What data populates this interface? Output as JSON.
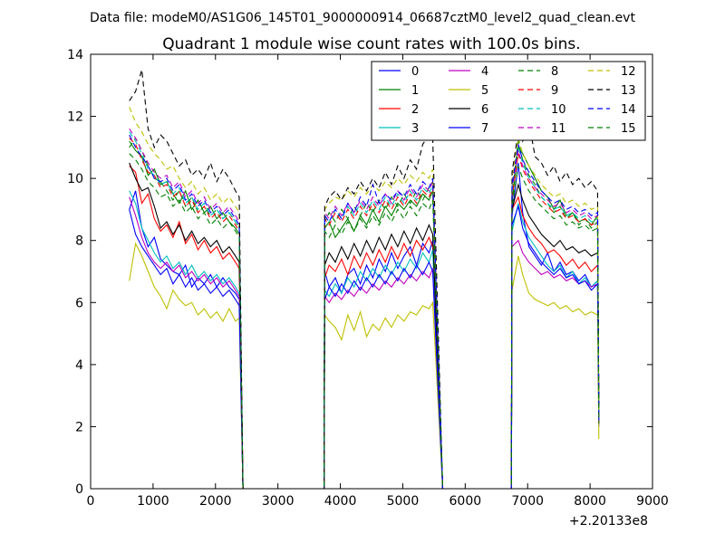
{
  "suptitle": "Data file: modeM0/AS1G06_145T01_9000000914_06687cztM0_level2_quad_clean.evt",
  "chart_data": {
    "type": "line",
    "title": "Quadrant 1 module wise count rates with 100.0s bins.",
    "xlabel": "",
    "ylabel": "",
    "x_offset_label": "+2.20133e8",
    "xlim": [
      0,
      9000
    ],
    "ylim": [
      0,
      14
    ],
    "x_ticks": [
      0,
      1000,
      2000,
      3000,
      4000,
      5000,
      6000,
      7000,
      8000,
      9000
    ],
    "y_ticks": [
      0,
      2,
      4,
      6,
      8,
      10,
      12,
      14
    ],
    "grid": false,
    "legend_position": "top-right",
    "legend_columns": 4,
    "segments": [
      [
        620,
        720,
        820,
        920,
        1020,
        1120,
        1220,
        1320,
        1420,
        1520,
        1620,
        1720,
        1820,
        1920,
        2020,
        2120,
        2220,
        2320,
        2380
      ],
      [
        3750,
        3820,
        3920,
        4020,
        4120,
        4220,
        4320,
        4420,
        4520,
        4620,
        4720,
        4820,
        4920,
        5020,
        5120,
        5220,
        5320,
        5420,
        5480
      ],
      [
        6750,
        6850,
        6920,
        7020,
        7120,
        7220,
        7320,
        7420,
        7520,
        7620,
        7720,
        7820,
        7920,
        8020,
        8120
      ]
    ],
    "gaps": [
      [
        2440,
        2540,
        2640,
        2740,
        2840,
        2940,
        3040,
        3140,
        3240,
        3340,
        3440,
        3540,
        3640,
        3740
      ],
      [
        5640,
        5740,
        5840,
        5940,
        6040,
        6140,
        6240,
        6340,
        6440,
        6540,
        6640,
        6740
      ]
    ],
    "series": [
      {
        "name": "0",
        "color": "#0000ff",
        "dash": "solid",
        "values": [
          [
            9.0,
            9.6,
            8.4,
            7.8,
            8.1,
            7.4,
            7.2,
            7.0,
            6.9,
            7.2,
            6.5,
            6.8,
            6.6,
            6.9,
            6.5,
            6.8,
            6.5,
            6.3,
            6.1
          ],
          [
            7.0,
            6.5,
            6.8,
            6.3,
            6.9,
            7.1,
            6.6,
            7.2,
            6.8,
            7.4,
            7.0,
            7.6,
            7.1,
            7.5,
            7.8,
            7.2,
            7.9,
            7.6,
            8.0
          ],
          [
            8.8,
            10.5,
            8.9,
            7.8,
            7.5,
            7.2,
            7.6,
            7.0,
            7.3,
            6.9,
            7.0,
            6.7,
            6.9,
            6.5,
            6.7
          ]
        ]
      },
      {
        "name": "1",
        "color": "#008000",
        "dash": "solid",
        "values": [
          [
            11.2,
            10.9,
            10.7,
            10.1,
            10.3,
            9.8,
            9.9,
            9.5,
            9.2,
            9.6,
            9.0,
            9.3,
            8.9,
            9.1,
            8.7,
            8.9,
            8.6,
            8.4,
            8.2
          ],
          [
            8.4,
            8.6,
            8.1,
            8.4,
            8.7,
            8.3,
            8.8,
            8.5,
            9.0,
            8.6,
            9.1,
            8.8,
            9.2,
            9.0,
            9.3,
            9.1,
            9.5,
            9.3,
            9.6
          ],
          [
            9.2,
            11.0,
            10.8,
            10.4,
            10.0,
            9.6,
            9.4,
            9.0,
            9.3,
            8.8,
            8.9,
            8.6,
            8.7,
            8.5,
            8.8
          ]
        ]
      },
      {
        "name": "2",
        "color": "#ff0000",
        "dash": "solid",
        "values": [
          [
            10.4,
            10.2,
            9.2,
            9.5,
            8.7,
            8.3,
            8.5,
            8.1,
            8.6,
            7.9,
            8.2,
            7.7,
            8.0,
            7.6,
            7.8,
            7.4,
            7.6,
            7.3,
            7.1
          ],
          [
            6.8,
            7.2,
            7.0,
            7.4,
            6.9,
            7.5,
            7.1,
            7.6,
            7.2,
            7.7,
            7.3,
            7.8,
            7.4,
            7.9,
            7.5,
            8.0,
            7.7,
            8.1,
            7.8
          ],
          [
            9.0,
            9.4,
            8.8,
            8.4,
            8.1,
            7.9,
            7.6,
            7.7,
            7.5,
            7.2,
            7.4,
            7.1,
            7.3,
            7.0,
            7.2
          ]
        ]
      },
      {
        "name": "3",
        "color": "#00bfbf",
        "dash": "solid",
        "values": [
          [
            9.6,
            9.2,
            8.4,
            8.0,
            7.6,
            7.3,
            7.5,
            7.1,
            7.3,
            6.9,
            7.2,
            6.8,
            7.0,
            6.7,
            6.9,
            6.6,
            6.8,
            6.5,
            6.3
          ],
          [
            6.4,
            6.2,
            6.6,
            6.3,
            6.8,
            6.5,
            7.0,
            6.7,
            7.1,
            6.8,
            7.2,
            6.9,
            7.3,
            7.0,
            7.4,
            7.1,
            7.6,
            7.3,
            7.7
          ],
          [
            8.3,
            9.2,
            8.6,
            8.1,
            7.8,
            7.5,
            7.2,
            7.0,
            7.2,
            6.8,
            7.0,
            6.6,
            6.8,
            6.5,
            6.7
          ]
        ]
      },
      {
        "name": "4",
        "color": "#bf00bf",
        "dash": "solid",
        "values": [
          [
            9.4,
            8.8,
            8.1,
            7.6,
            7.3,
            7.1,
            7.3,
            7.0,
            7.2,
            6.8,
            7.0,
            6.7,
            6.9,
            6.6,
            6.8,
            6.5,
            6.7,
            6.4,
            6.2
          ],
          [
            6.2,
            6.0,
            6.3,
            6.1,
            6.4,
            6.2,
            6.5,
            6.3,
            6.6,
            6.4,
            6.7,
            6.5,
            6.8,
            6.6,
            6.9,
            6.7,
            7.0,
            6.8,
            7.1
          ],
          [
            7.8,
            8.0,
            7.6,
            7.3,
            7.1,
            6.9,
            7.0,
            6.8,
            6.9,
            6.7,
            6.8,
            6.6,
            6.7,
            6.5,
            6.6
          ]
        ]
      },
      {
        "name": "5",
        "color": "#bfbf00",
        "dash": "solid",
        "values": [
          [
            6.7,
            7.9,
            7.5,
            7.0,
            6.5,
            6.2,
            5.8,
            6.4,
            6.1,
            5.9,
            6.0,
            5.6,
            5.8,
            5.5,
            5.7,
            5.4,
            5.8,
            5.4,
            5.5
          ],
          [
            5.6,
            5.4,
            5.2,
            4.8,
            5.6,
            5.1,
            5.7,
            4.9,
            5.3,
            5.1,
            5.5,
            5.2,
            5.6,
            5.4,
            5.7,
            5.6,
            5.9,
            5.8,
            6.0
          ],
          [
            6.4,
            7.5,
            6.9,
            6.3,
            6.1,
            6.0,
            5.9,
            6.0,
            5.8,
            5.9,
            5.7,
            5.8,
            5.6,
            5.7,
            5.6
          ]
        ]
      },
      {
        "name": "6",
        "color": "#000000",
        "dash": "solid",
        "values": [
          [
            10.5,
            10.0,
            9.6,
            9.7,
            9.1,
            8.4,
            8.6,
            8.2,
            8.5,
            8.0,
            8.3,
            7.9,
            8.1,
            7.8,
            8.0,
            7.6,
            7.8,
            7.5,
            7.3
          ],
          [
            7.2,
            7.6,
            7.3,
            7.8,
            7.4,
            7.9,
            7.5,
            8.0,
            7.6,
            8.1,
            7.7,
            8.2,
            7.8,
            8.3,
            7.9,
            8.4,
            8.0,
            8.5,
            8.2
          ],
          [
            9.0,
            9.8,
            9.3,
            8.8,
            8.5,
            8.2,
            8.0,
            7.8,
            8.0,
            7.7,
            7.8,
            7.6,
            7.7,
            7.5,
            7.6
          ]
        ]
      },
      {
        "name": "7",
        "color": "#0000ff",
        "dash": "solid",
        "values": [
          [
            9.0,
            8.2,
            7.8,
            7.5,
            7.2,
            6.9,
            7.1,
            6.6,
            6.9,
            6.5,
            6.8,
            6.4,
            6.6,
            6.3,
            6.5,
            6.2,
            6.4,
            6.1,
            5.9
          ],
          [
            6.1,
            6.5,
            6.2,
            6.6,
            6.3,
            6.7,
            6.4,
            6.8,
            6.5,
            6.9,
            6.6,
            7.0,
            6.7,
            7.1,
            6.8,
            7.2,
            6.9,
            7.3,
            7.0
          ],
          [
            8.5,
            9.1,
            8.4,
            7.9,
            7.6,
            7.3,
            7.1,
            6.9,
            7.1,
            6.8,
            6.9,
            6.6,
            6.7,
            6.4,
            6.6
          ]
        ]
      },
      {
        "name": "8",
        "color": "#008000",
        "dash": "dashed",
        "values": [
          [
            11.0,
            11.3,
            10.9,
            10.4,
            10.0,
            9.9,
            9.6,
            9.3,
            9.6,
            9.1,
            9.4,
            8.9,
            9.1,
            8.8,
            9.0,
            8.7,
            8.9,
            8.6,
            8.4
          ],
          [
            8.6,
            8.9,
            8.6,
            9.0,
            8.7,
            9.1,
            8.8,
            9.2,
            8.9,
            9.3,
            9.0,
            9.4,
            9.1,
            9.5,
            9.2,
            9.6,
            9.3,
            9.7,
            9.9
          ],
          [
            9.5,
            11.2,
            10.6,
            10.1,
            9.8,
            9.4,
            9.2,
            8.9,
            9.1,
            8.7,
            8.9,
            8.5,
            8.7,
            8.4,
            8.6
          ]
        ]
      },
      {
        "name": "9",
        "color": "#ff0000",
        "dash": "dashed",
        "values": [
          [
            11.3,
            11.1,
            10.6,
            10.2,
            10.1,
            9.7,
            9.8,
            9.4,
            9.6,
            9.1,
            9.3,
            8.9,
            9.1,
            8.7,
            8.9,
            8.6,
            8.8,
            8.5,
            8.3
          ],
          [
            8.7,
            8.5,
            8.9,
            8.6,
            9.0,
            8.7,
            9.1,
            8.8,
            9.2,
            8.9,
            9.3,
            9.0,
            9.4,
            9.1,
            9.5,
            9.2,
            9.6,
            9.4,
            9.7
          ],
          [
            9.4,
            10.8,
            10.3,
            9.9,
            9.6,
            9.3,
            9.1,
            8.9,
            9.0,
            8.7,
            8.8,
            8.6,
            8.7,
            8.5,
            8.6
          ]
        ]
      },
      {
        "name": "10",
        "color": "#00bfbf",
        "dash": "dashed",
        "values": [
          [
            11.5,
            11.2,
            10.8,
            10.3,
            10.1,
            9.8,
            9.9,
            9.5,
            9.7,
            9.2,
            9.4,
            9.0,
            9.2,
            8.8,
            9.0,
            8.7,
            8.9,
            8.6,
            8.4
          ],
          [
            8.8,
            8.6,
            9.0,
            8.7,
            9.1,
            8.8,
            9.2,
            8.9,
            9.3,
            9.0,
            9.4,
            9.1,
            9.5,
            9.2,
            9.6,
            9.3,
            9.7,
            9.5,
            9.8
          ],
          [
            9.6,
            11.0,
            10.5,
            10.0,
            9.7,
            9.4,
            9.2,
            9.0,
            9.1,
            8.8,
            8.9,
            8.7,
            8.8,
            8.6,
            8.7
          ]
        ]
      },
      {
        "name": "11",
        "color": "#bf00bf",
        "dash": "dashed",
        "values": [
          [
            11.6,
            11.3,
            10.9,
            10.5,
            10.2,
            10.0,
            10.1,
            9.7,
            9.9,
            9.4,
            9.6,
            9.2,
            9.4,
            9.0,
            9.2,
            8.9,
            9.1,
            8.8,
            8.6
          ],
          [
            8.9,
            8.7,
            9.1,
            8.8,
            9.2,
            8.9,
            9.3,
            9.0,
            9.4,
            9.1,
            9.5,
            9.2,
            9.6,
            9.3,
            9.7,
            9.4,
            9.8,
            9.6,
            9.9
          ],
          [
            9.7,
            10.9,
            10.4,
            10.0,
            9.7,
            9.5,
            9.3,
            9.1,
            9.2,
            8.9,
            9.0,
            8.8,
            8.9,
            8.7,
            8.8
          ]
        ]
      },
      {
        "name": "12",
        "color": "#bfbf00",
        "dash": "dashed",
        "values": [
          [
            12.3,
            11.8,
            11.5,
            11.1,
            10.8,
            10.6,
            10.3,
            10.4,
            10.0,
            9.7,
            9.9,
            9.5,
            9.7,
            9.3,
            9.5,
            9.2,
            9.4,
            9.1,
            8.9
          ],
          [
            9.0,
            9.2,
            9.4,
            9.3,
            9.6,
            9.4,
            9.7,
            9.5,
            9.8,
            9.6,
            9.9,
            9.7,
            10.0,
            9.8,
            10.1,
            9.9,
            10.2,
            10.0,
            10.3
          ],
          [
            10.0,
            11.3,
            10.8,
            10.4,
            10.1,
            9.8,
            9.6,
            9.4,
            9.5,
            9.2,
            9.3,
            9.1,
            9.2,
            9.0,
            9.1
          ]
        ]
      },
      {
        "name": "13",
        "color": "#000000",
        "dash": "dashed",
        "values": [
          [
            12.5,
            12.8,
            13.5,
            11.6,
            11.0,
            11.4,
            11.2,
            10.8,
            10.4,
            10.6,
            10.1,
            10.3,
            10.0,
            10.5,
            9.9,
            10.3,
            10.0,
            9.6,
            9.4
          ],
          [
            9.1,
            9.4,
            9.6,
            9.3,
            9.7,
            9.5,
            9.9,
            9.6,
            10.0,
            9.7,
            10.2,
            9.8,
            10.4,
            10.0,
            10.6,
            10.3,
            11.1,
            11.4,
            11.3
          ],
          [
            10.2,
            11.5,
            11.2,
            11.8,
            10.7,
            10.5,
            10.1,
            10.4,
            9.9,
            10.2,
            9.8,
            10.0,
            9.7,
            9.9,
            9.6
          ]
        ]
      },
      {
        "name": "14",
        "color": "#0000ff",
        "dash": "dashed",
        "values": [
          [
            11.4,
            11.0,
            10.7,
            10.4,
            10.0,
            9.9,
            10.0,
            9.6,
            9.8,
            9.3,
            9.5,
            9.1,
            9.3,
            8.9,
            9.1,
            8.8,
            9.0,
            8.7,
            8.5
          ],
          [
            8.8,
            8.6,
            9.0,
            8.7,
            9.2,
            8.9,
            9.4,
            9.1,
            9.8,
            9.2,
            9.5,
            9.3,
            9.6,
            9.4,
            9.8,
            9.5,
            9.9,
            9.7,
            10.0
          ],
          [
            9.8,
            11.1,
            10.6,
            10.2,
            9.9,
            9.6,
            9.4,
            9.2,
            9.3,
            9.0,
            9.1,
            8.9,
            9.0,
            8.8,
            8.9
          ]
        ]
      },
      {
        "name": "15",
        "color": "#008000",
        "dash": "dashed",
        "values": [
          [
            10.8,
            10.6,
            10.3,
            9.9,
            9.7,
            9.4,
            9.5,
            9.1,
            9.3,
            8.9,
            9.1,
            8.7,
            8.9,
            8.5,
            8.7,
            8.4,
            8.6,
            8.3,
            8.1
          ],
          [
            8.3,
            8.1,
            8.5,
            8.2,
            8.6,
            8.3,
            8.7,
            8.4,
            8.8,
            8.5,
            8.9,
            8.6,
            9.0,
            8.7,
            9.1,
            8.8,
            9.2,
            9.0,
            9.3
          ],
          [
            9.1,
            10.4,
            10.0,
            9.6,
            9.3,
            9.1,
            8.9,
            8.7,
            8.8,
            8.5,
            8.6,
            8.4,
            8.5,
            8.3,
            8.4
          ]
        ]
      }
    ],
    "drop_values": {
      "end_of_segment": 0,
      "final_point": [
        2.0,
        2.2,
        2.6,
        2.1,
        2.3,
        1.6,
        2.5,
        2.2,
        2.4,
        2.1,
        2.3,
        2.2,
        2.4,
        2.6,
        2.3,
        2.1
      ]
    }
  }
}
